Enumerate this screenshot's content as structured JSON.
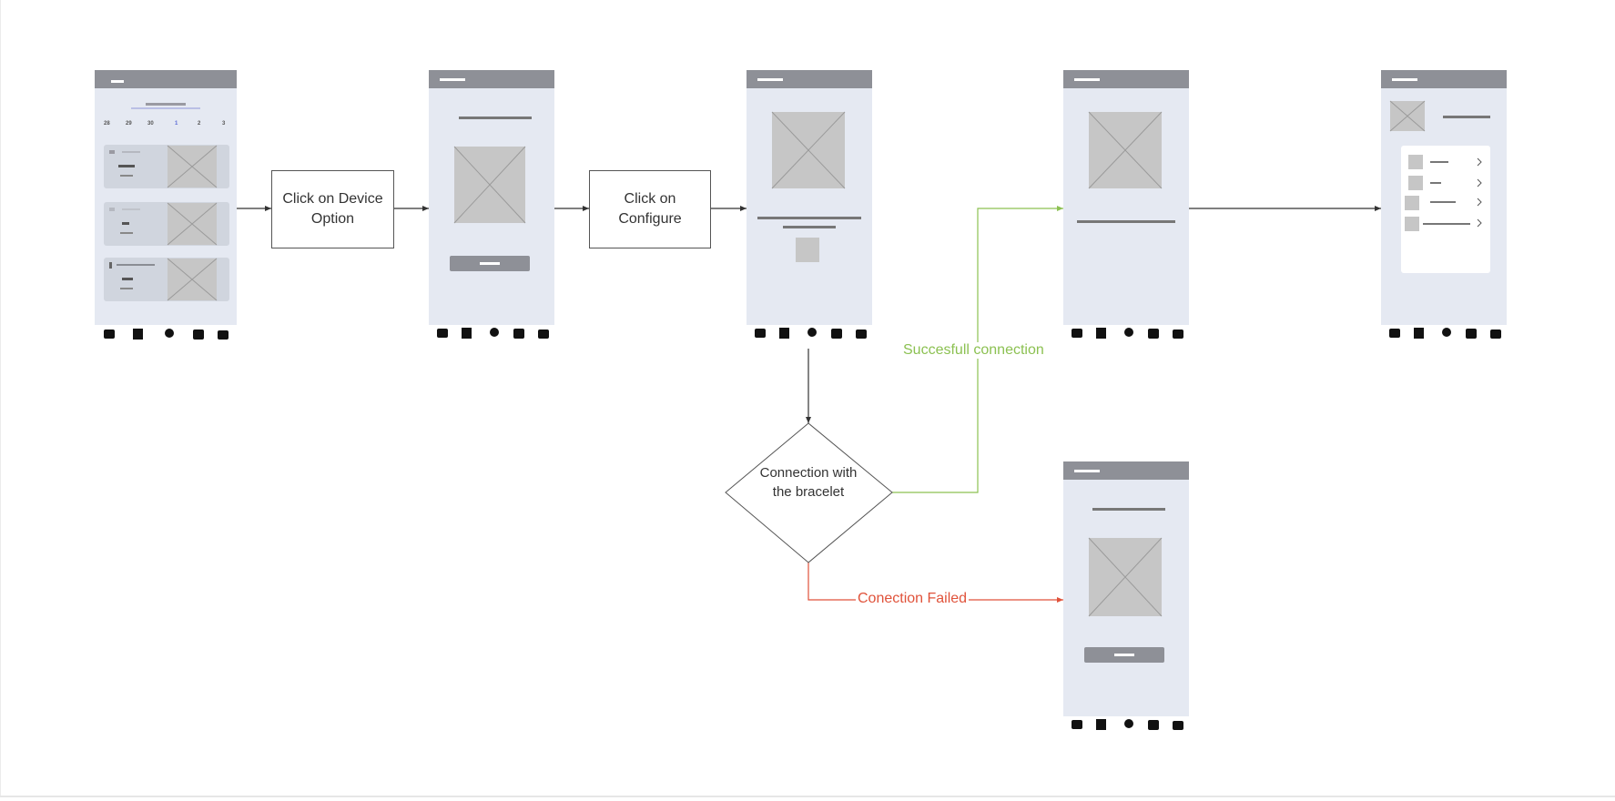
{
  "colors": {
    "success": "#8cc152",
    "failure": "#e0523a",
    "connector": "#333333",
    "phone_bg": "#e5e9f2",
    "phone_header": "#8e9097",
    "placeholder": "#c6c6c6"
  },
  "steps": {
    "click_device": "Click on Device Option",
    "click_configure": "Click on Configure",
    "decision": "Connection with the bracelet"
  },
  "edges": {
    "success": "Succesfull connection",
    "failure": "Conection Failed"
  },
  "mockup": {
    "calendar_days": [
      "28",
      "29",
      "30",
      "1",
      "2",
      "3"
    ],
    "nav_icons": [
      "home-icon",
      "list-icon",
      "person-pin-icon",
      "device-hand-icon",
      "profile-icon"
    ]
  }
}
